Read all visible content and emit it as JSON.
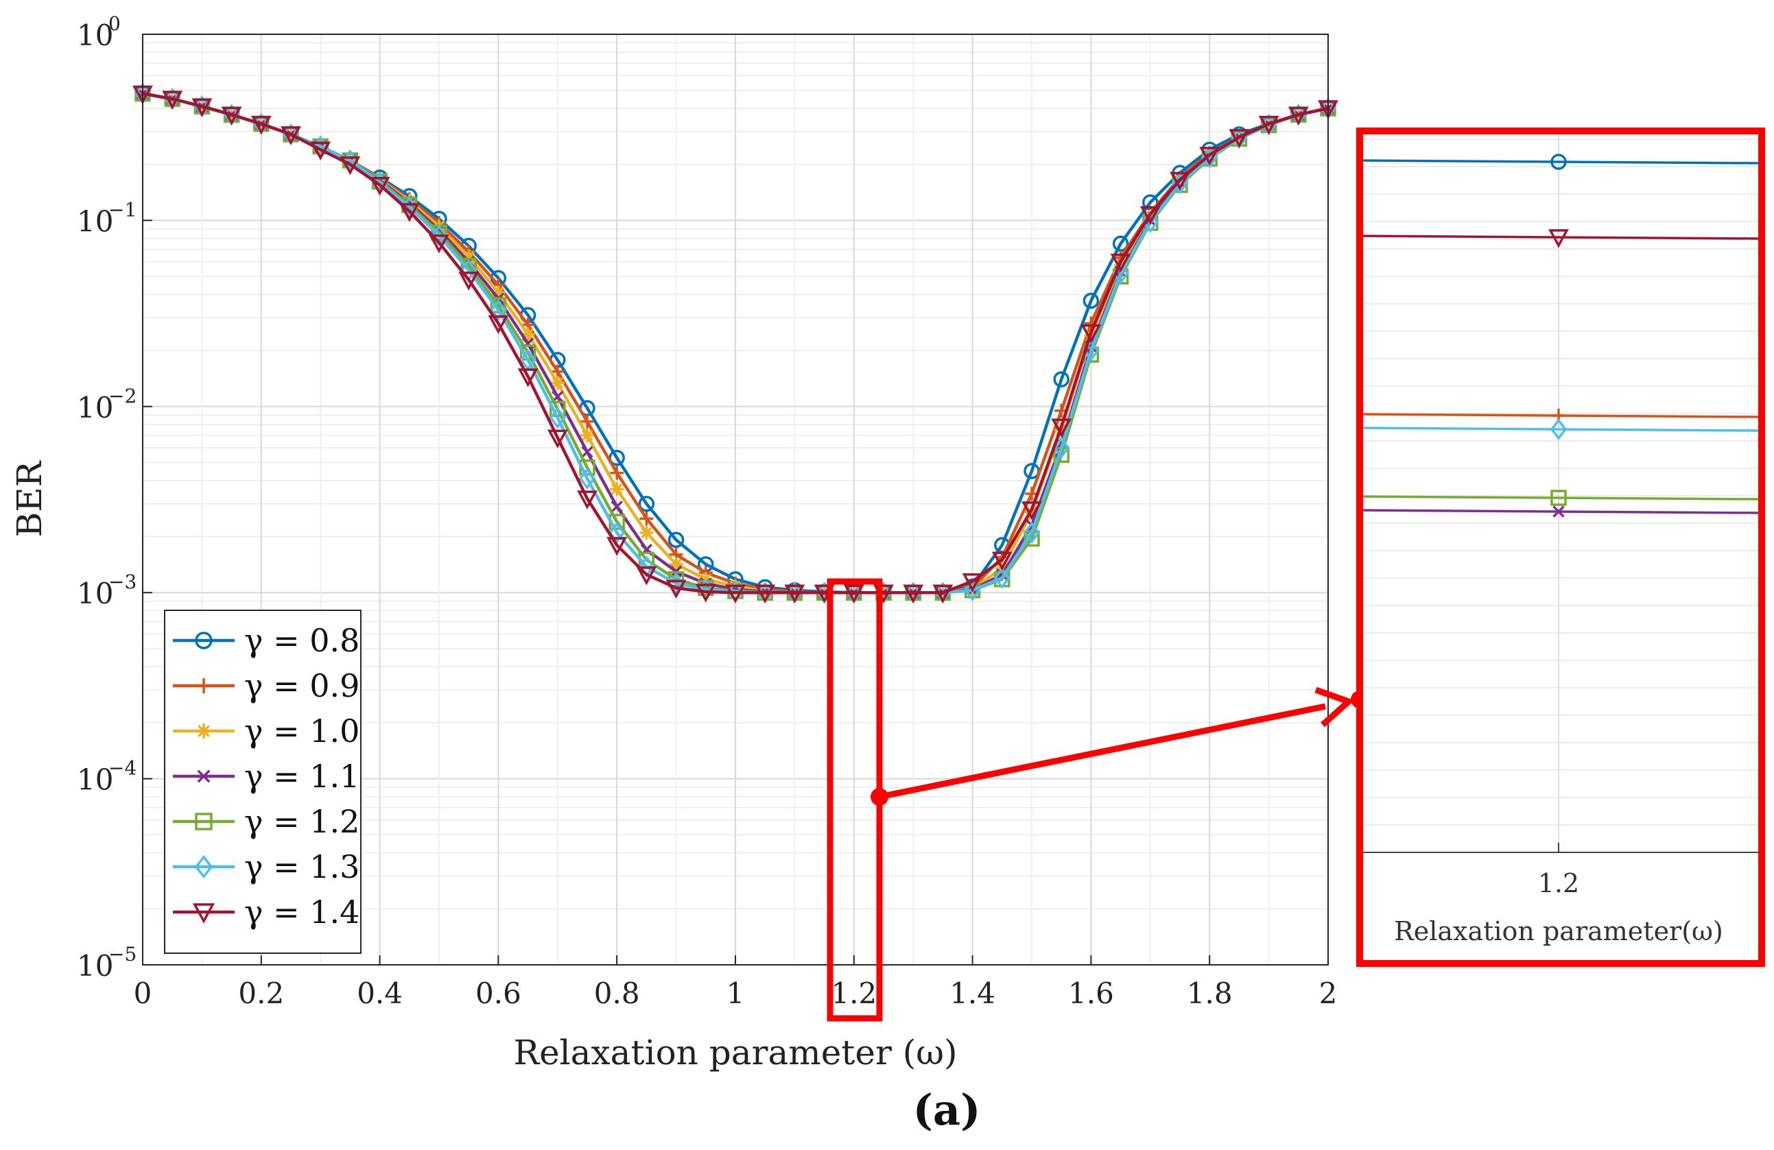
{
  "chart_data": {
    "type": "line",
    "title": "",
    "panel_label": "(a)",
    "xlabel": "Relaxation parameter (ω)",
    "ylabel": "BER",
    "yscale": "log",
    "xlim": [
      0,
      2
    ],
    "ylim": [
      1e-05,
      1
    ],
    "grid": true,
    "legend_position": "bottom-left",
    "x_ticks": [
      0,
      0.2,
      0.4,
      0.6,
      0.8,
      1,
      1.2,
      1.4,
      1.6,
      1.8,
      2
    ],
    "x_tick_labels": [
      "0",
      "0.2",
      "0.4",
      "0.6",
      "0.8",
      "1",
      "1.2",
      "1.4",
      "1.6",
      "1.8",
      "2"
    ],
    "y_ticks": [
      {
        "value": 1,
        "base": "10",
        "exp": "0"
      },
      {
        "value": 0.1,
        "base": "10",
        "exp": "−1"
      },
      {
        "value": 0.01,
        "base": "10",
        "exp": "−2"
      },
      {
        "value": 0.001,
        "base": "10",
        "exp": "−3"
      },
      {
        "value": 0.0001,
        "base": "10",
        "exp": "−4"
      },
      {
        "value": 1e-05,
        "base": "10",
        "exp": "−5"
      }
    ],
    "x": [
      0,
      0.05,
      0.1,
      0.15,
      0.2,
      0.25,
      0.3,
      0.35,
      0.4,
      0.45,
      0.5,
      0.55,
      0.6,
      0.65,
      0.7,
      0.75,
      0.8,
      0.85,
      0.9,
      0.95,
      1,
      1.05,
      1.1,
      1.15,
      1.2,
      1.25,
      1.3,
      1.35,
      1.4,
      1.45,
      1.5,
      1.55,
      1.6,
      1.65,
      1.7,
      1.75,
      1.8,
      1.85,
      1.9,
      1.95,
      2
    ],
    "series": [
      {
        "name": "γ = 0.8",
        "color": "#0072BD",
        "marker": "circle",
        "values": [
          0.48,
          0.45,
          0.41,
          0.37,
          0.33,
          0.29,
          0.25,
          0.21,
          0.17,
          0.135,
          0.102,
          0.073,
          0.049,
          0.031,
          0.0178,
          0.0098,
          0.0053,
          0.003,
          0.00192,
          0.00142,
          0.00118,
          0.00107,
          0.00103,
          0.00101,
          0.001,
          0.001,
          0.001,
          0.001,
          0.00108,
          0.0018,
          0.0045,
          0.014,
          0.037,
          0.075,
          0.125,
          0.18,
          0.24,
          0.29,
          0.33,
          0.37,
          0.4
        ]
      },
      {
        "name": "γ = 0.9",
        "color": "#D95319",
        "marker": "plus",
        "values": [
          0.48,
          0.45,
          0.41,
          0.37,
          0.33,
          0.29,
          0.25,
          0.21,
          0.168,
          0.13,
          0.097,
          0.068,
          0.045,
          0.0275,
          0.0154,
          0.0083,
          0.0044,
          0.0025,
          0.0016,
          0.00128,
          0.00112,
          0.00104,
          0.00101,
          0.001,
          0.001,
          0.001,
          0.001,
          0.001,
          0.00106,
          0.00155,
          0.0034,
          0.0095,
          0.028,
          0.063,
          0.11,
          0.17,
          0.23,
          0.28,
          0.33,
          0.37,
          0.4
        ]
      },
      {
        "name": "γ = 1.0",
        "color": "#EDB120",
        "marker": "asterisk",
        "values": [
          0.48,
          0.45,
          0.41,
          0.37,
          0.33,
          0.29,
          0.25,
          0.21,
          0.166,
          0.127,
          0.093,
          0.064,
          0.041,
          0.0245,
          0.0134,
          0.007,
          0.0036,
          0.0021,
          0.00142,
          0.00118,
          0.00108,
          0.00102,
          0.001,
          0.001,
          0.001,
          0.001,
          0.001,
          0.001,
          0.00105,
          0.00135,
          0.0027,
          0.0075,
          0.024,
          0.057,
          0.105,
          0.165,
          0.225,
          0.28,
          0.33,
          0.37,
          0.4
        ]
      },
      {
        "name": "γ = 1.1",
        "color": "#7E2F8E",
        "marker": "cross",
        "values": [
          0.48,
          0.45,
          0.41,
          0.37,
          0.33,
          0.29,
          0.25,
          0.21,
          0.164,
          0.124,
          0.089,
          0.06,
          0.038,
          0.0218,
          0.0113,
          0.0057,
          0.0029,
          0.0017,
          0.0013,
          0.00112,
          0.00104,
          0.00101,
          0.001,
          0.001,
          0.001,
          0.001,
          0.001,
          0.001,
          0.00104,
          0.00125,
          0.0023,
          0.0063,
          0.021,
          0.053,
          0.1,
          0.16,
          0.22,
          0.28,
          0.33,
          0.37,
          0.4
        ]
      },
      {
        "name": "γ = 1.2",
        "color": "#77AC30",
        "marker": "square",
        "values": [
          0.48,
          0.45,
          0.41,
          0.37,
          0.33,
          0.29,
          0.25,
          0.21,
          0.162,
          0.121,
          0.086,
          0.057,
          0.035,
          0.0195,
          0.0097,
          0.0047,
          0.0024,
          0.0015,
          0.00118,
          0.00106,
          0.00102,
          0.001,
          0.001,
          0.001,
          0.001,
          0.001,
          0.001,
          0.001,
          0.00103,
          0.00118,
          0.00195,
          0.0055,
          0.019,
          0.05,
          0.097,
          0.155,
          0.215,
          0.275,
          0.325,
          0.37,
          0.4
        ]
      },
      {
        "name": "γ = 1.3",
        "color": "#4DBEEE",
        "marker": "diamond",
        "values": [
          0.48,
          0.45,
          0.41,
          0.37,
          0.33,
          0.29,
          0.25,
          0.21,
          0.16,
          0.118,
          0.083,
          0.054,
          0.033,
          0.0178,
          0.0087,
          0.0041,
          0.0021,
          0.00138,
          0.00112,
          0.00104,
          0.00101,
          0.001,
          0.001,
          0.001,
          0.001,
          0.001,
          0.001,
          0.001,
          0.00103,
          0.0012,
          0.0021,
          0.006,
          0.02,
          0.052,
          0.098,
          0.158,
          0.218,
          0.277,
          0.327,
          0.37,
          0.4
        ]
      },
      {
        "name": "γ = 1.4",
        "color": "#A2142F",
        "marker": "triangle-down",
        "values": [
          0.48,
          0.45,
          0.41,
          0.37,
          0.33,
          0.29,
          0.24,
          0.2,
          0.155,
          0.112,
          0.076,
          0.048,
          0.028,
          0.0145,
          0.0068,
          0.0032,
          0.0018,
          0.00125,
          0.00106,
          0.00101,
          0.001,
          0.001,
          0.001,
          0.001,
          0.001,
          0.001,
          0.001,
          0.001,
          0.00115,
          0.0015,
          0.0028,
          0.0078,
          0.025,
          0.06,
          0.108,
          0.165,
          0.225,
          0.28,
          0.33,
          0.37,
          0.4
        ]
      }
    ],
    "zoom_inset": {
      "x_tick_label": "1.2",
      "xlabel": "Relaxation parameter(ω)",
      "series_order": [
        "γ = 0.8",
        "γ = 1.4",
        "γ = 0.9",
        "γ = 1.3",
        "γ = 1.2",
        "γ = 1.1"
      ],
      "colors": {
        "box": "#FF0000"
      }
    }
  }
}
